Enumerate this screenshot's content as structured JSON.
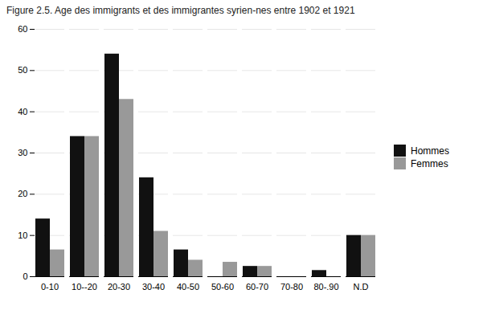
{
  "chart_data": {
    "type": "bar",
    "title": "Figure 2.5. Age des immigrants et des immigrantes syrien-nes entre 1902 et 1921",
    "categories": [
      "0-10",
      "10--20",
      "20-30",
      "30-40",
      "40-50",
      "50-60",
      "60-70",
      "70-80",
      "80-.90",
      "N.D"
    ],
    "series": [
      {
        "name": "Hommes",
        "color": "#111111",
        "values": [
          14,
          34,
          54,
          24,
          6.5,
          0,
          2.5,
          0,
          1.5,
          10
        ]
      },
      {
        "name": "Femmes",
        "color": "#999999",
        "values": [
          6.5,
          34,
          43,
          11,
          4,
          3.5,
          2.5,
          0,
          0,
          10
        ]
      }
    ],
    "ylim": [
      0,
      60
    ],
    "yticks": [
      0,
      10,
      20,
      30,
      40,
      50,
      60
    ],
    "grid": true,
    "legend": "right"
  }
}
